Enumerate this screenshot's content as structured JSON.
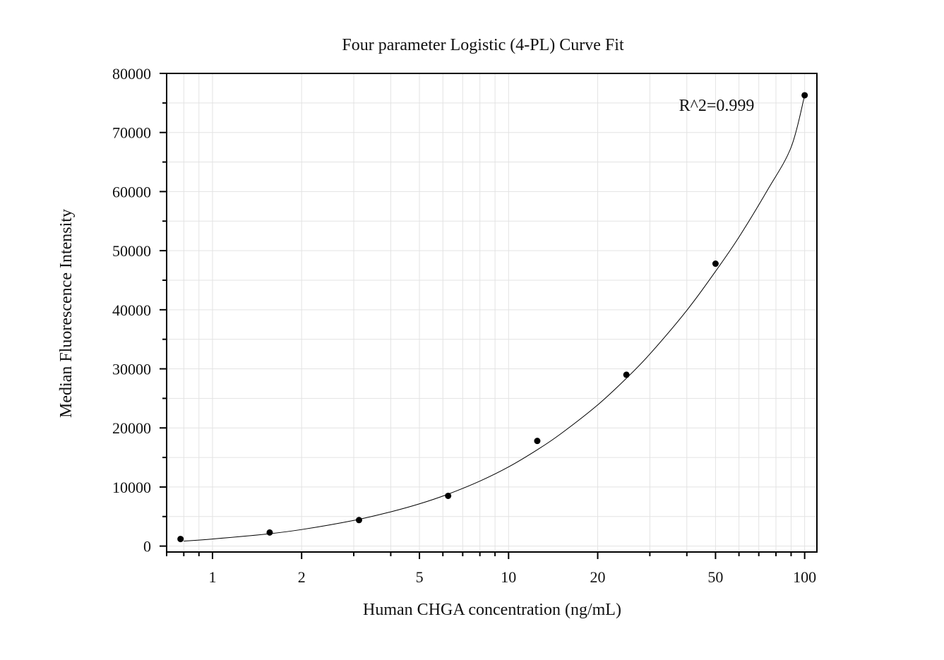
{
  "chart_data": {
    "type": "scatter",
    "title": "Four parameter Logistic (4-PL) Curve Fit",
    "xlabel": "Human CHGA concentration (ng/mL)",
    "ylabel": "Median Fluorescence Intensity",
    "x_scale": "log",
    "xlim": [
      0.7,
      110
    ],
    "ylim": [
      -1000,
      80000
    ],
    "x_ticks": [
      1,
      2,
      5,
      10,
      20,
      50,
      100
    ],
    "x_tick_labels": [
      "1",
      "2",
      "5",
      "10",
      "20",
      "50",
      "100"
    ],
    "y_ticks": [
      0,
      10000,
      20000,
      30000,
      40000,
      50000,
      60000,
      70000,
      80000
    ],
    "y_tick_labels": [
      "0",
      "10000",
      "20000",
      "30000",
      "40000",
      "50000",
      "60000",
      "70000",
      "80000"
    ],
    "grid": true,
    "annotation": "R^2=0.999",
    "colors": {
      "points": "#000000",
      "curve": "#000000",
      "grid": "#e3e3e3",
      "frame": "#000000"
    },
    "series": [
      {
        "style": "points",
        "x": [
          0.78,
          1.56,
          3.125,
          6.25,
          12.5,
          25,
          50,
          100
        ],
        "y": [
          1200,
          2300,
          4400,
          8500,
          17800,
          29000,
          47800,
          76300
        ]
      },
      {
        "style": "line",
        "x": [
          0.8,
          1,
          1.5,
          2,
          3,
          4,
          5,
          6.25,
          8,
          10,
          12.5,
          15,
          20,
          25,
          30,
          40,
          50,
          60,
          75,
          90,
          100
        ],
        "y": [
          850,
          1200,
          2000,
          2800,
          4350,
          5800,
          7150,
          8800,
          11000,
          13400,
          16300,
          19000,
          23900,
          28400,
          32500,
          39900,
          46500,
          52300,
          60300,
          67500,
          76300
        ]
      }
    ]
  }
}
